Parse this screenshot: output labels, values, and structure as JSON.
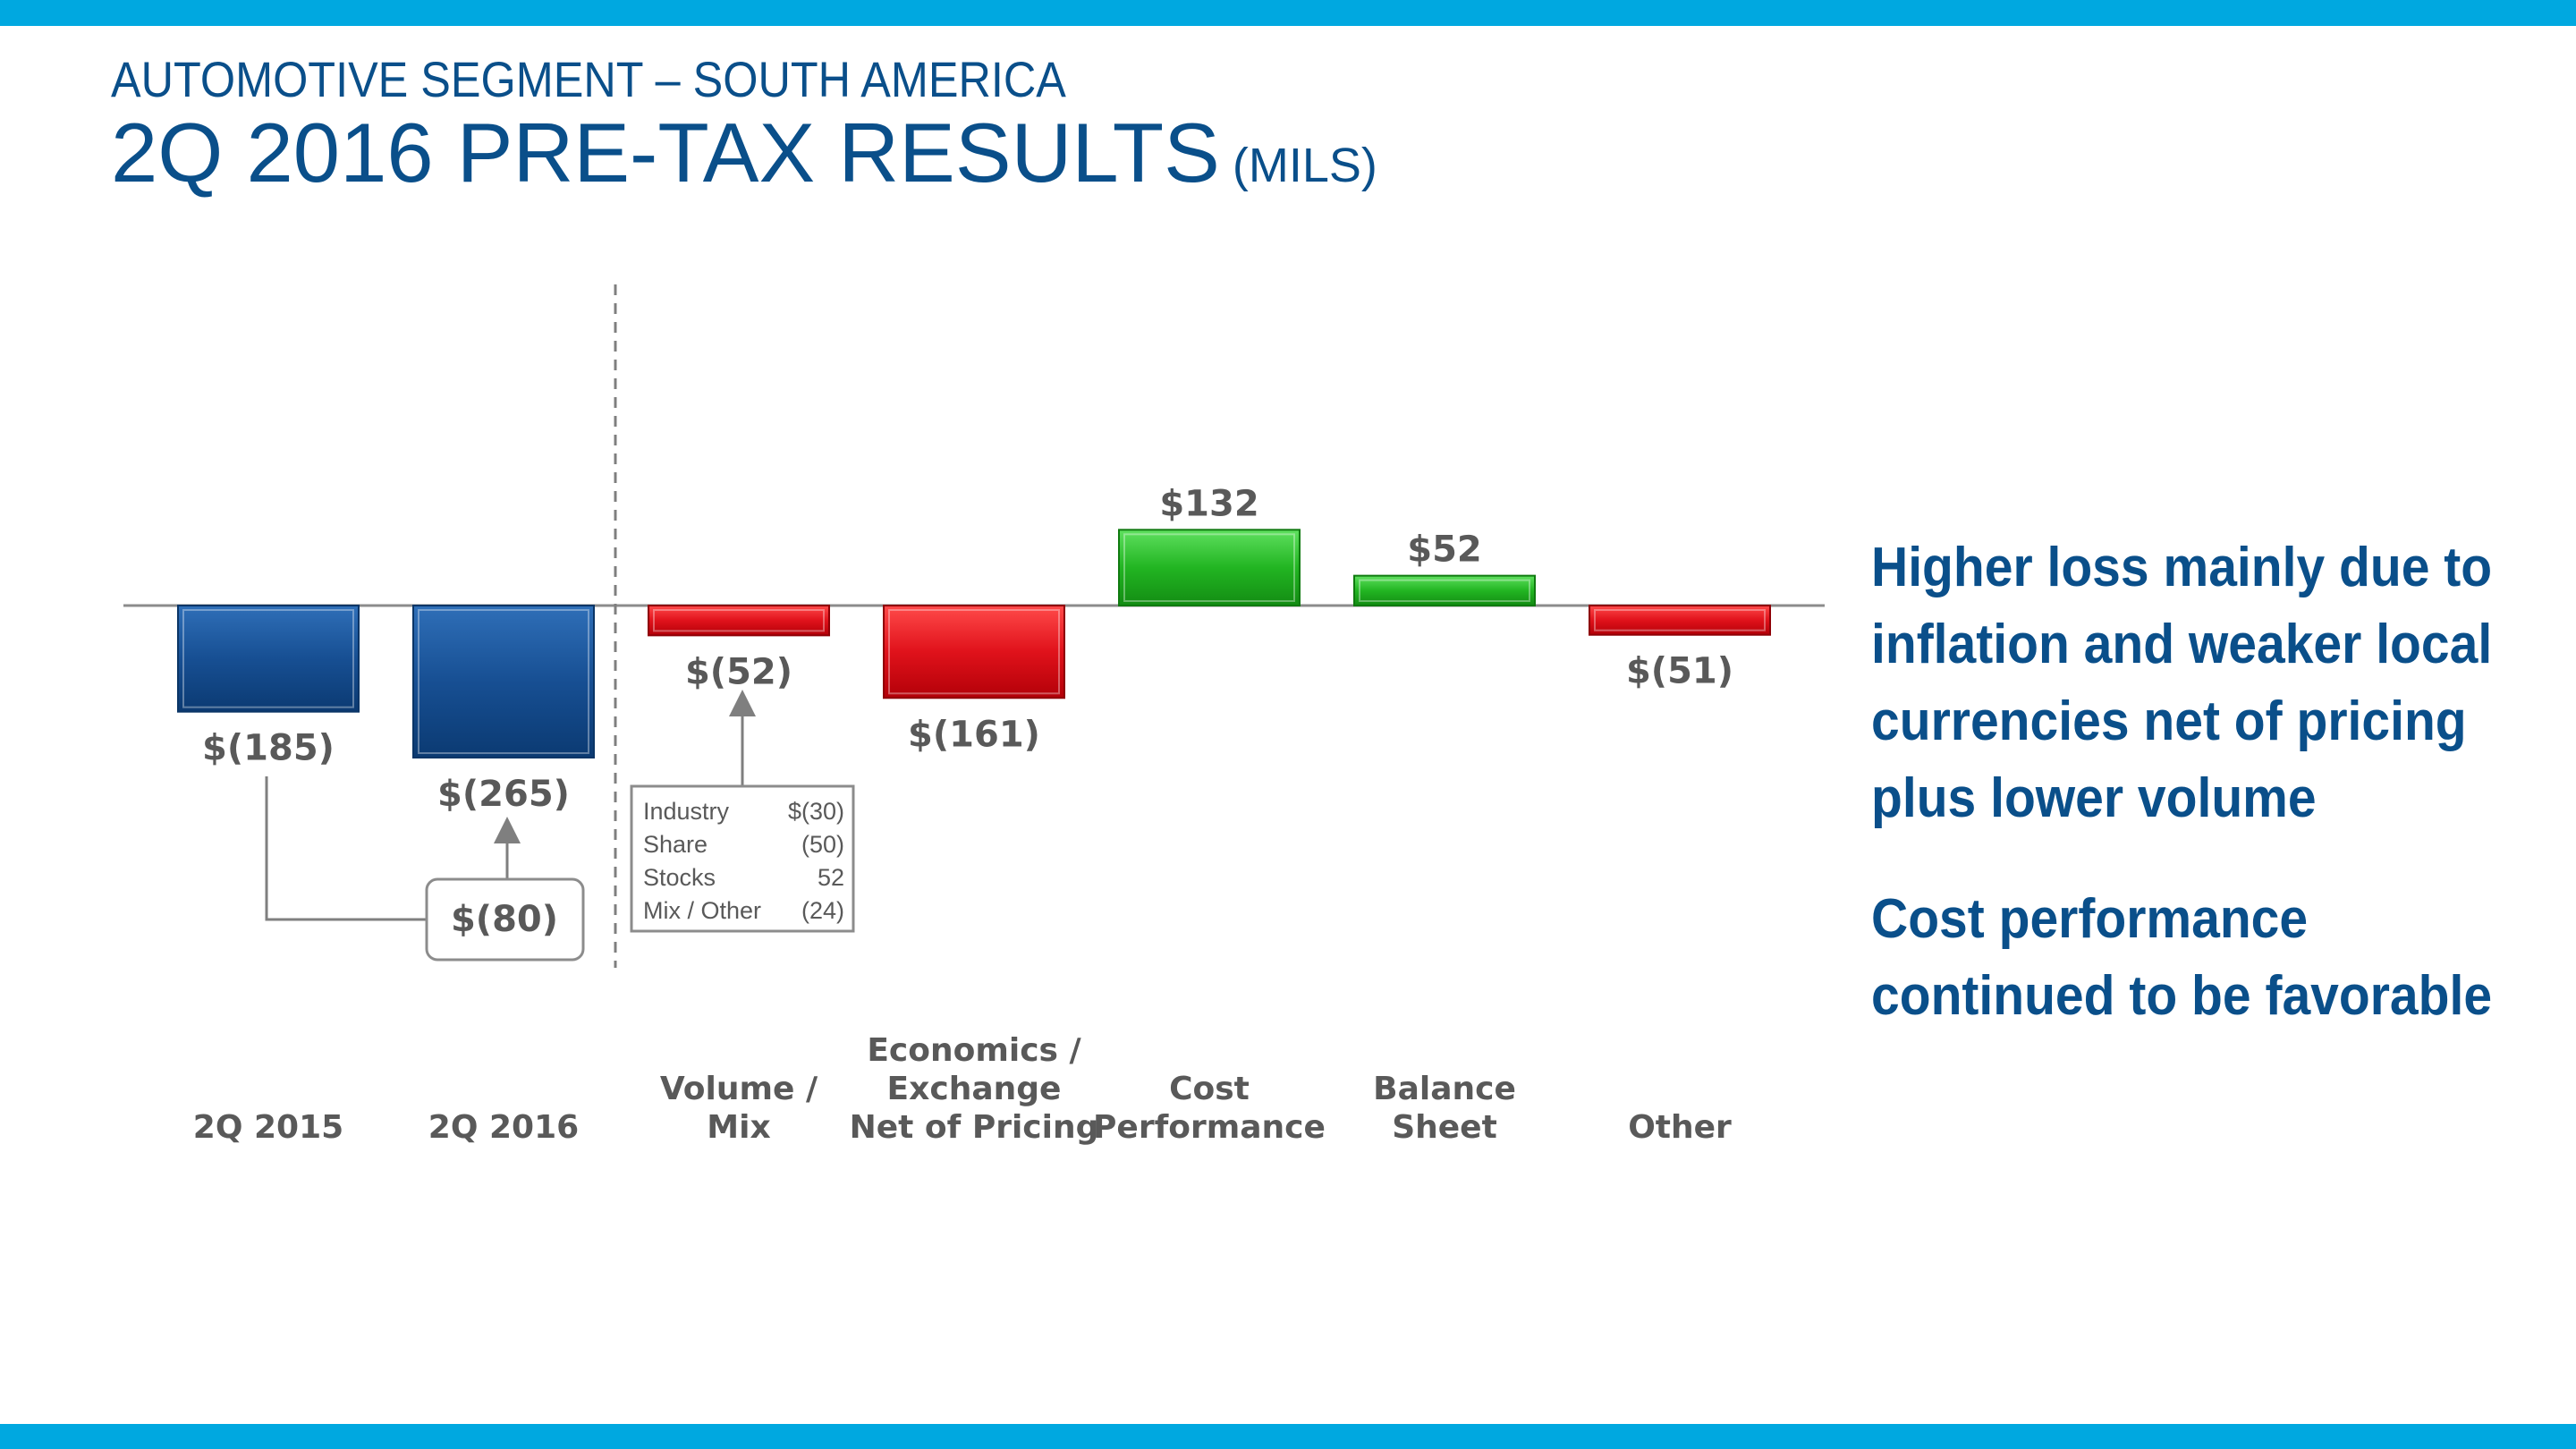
{
  "header": {
    "subtitle": "AUTOMOTIVE SEGMENT – SOUTH AMERICA",
    "title": "2Q 2016 PRE-TAX RESULTS",
    "unit": "(MILS)"
  },
  "commentary": {
    "point1": "Higher loss mainly due to inflation and weaker local currencies net of pricing plus lower volume",
    "point2": "Cost performance continued to be favorable"
  },
  "colors": {
    "accent_bar": "#00a8e0",
    "title": "#0a4f8a",
    "baseline_blue": "#0e4a8c",
    "negative_red": "#e0121b",
    "positive_green": "#22b522",
    "label_gray": "#595959"
  },
  "chart_data": {
    "type": "bar",
    "categories": [
      [
        "2Q 2015"
      ],
      [
        "2Q 2016"
      ],
      [
        "Volume /",
        "Mix"
      ],
      [
        "Economics /",
        "Exchange",
        "Net of Pricing"
      ],
      [
        "Cost",
        "Performance"
      ],
      [
        "Balance",
        "Sheet"
      ],
      [
        "Other"
      ]
    ],
    "values": [
      -185,
      -265,
      -52,
      -161,
      132,
      52,
      -51
    ],
    "value_labels": [
      "$(185)",
      "$(265)",
      "$(52)",
      "$(161)",
      "$132",
      "$52",
      "$(51)"
    ],
    "bar_kinds": [
      "total",
      "total",
      "change",
      "change",
      "change",
      "change",
      "change"
    ],
    "change_callout": "$(80)",
    "volume_mix_breakdown": [
      {
        "label": "Industry",
        "value": "$(30)"
      },
      {
        "label": "Share",
        "value": "(50)"
      },
      {
        "label": "Stocks",
        "value": "52"
      },
      {
        "label": "Mix / Other",
        "value": "(24)"
      }
    ],
    "grid": false
  }
}
